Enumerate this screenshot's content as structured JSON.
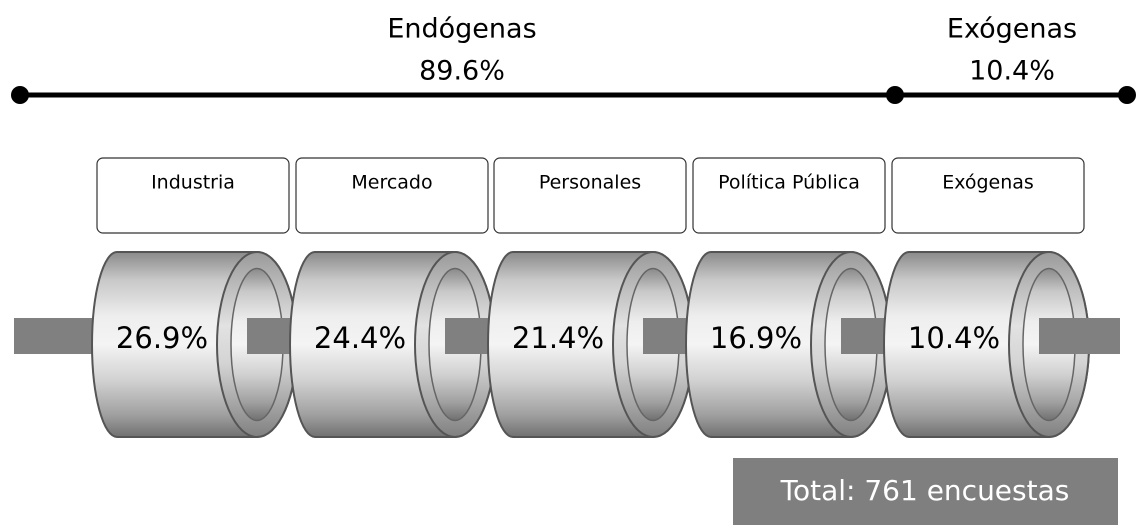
{
  "header": {
    "groups": [
      {
        "label": "Endógenas",
        "value": "89.6%"
      },
      {
        "label": "Exógenas",
        "value": "10.4%"
      }
    ]
  },
  "segments": [
    {
      "label": "Industria",
      "value": "26.9%"
    },
    {
      "label": "Mercado",
      "value": "24.4%"
    },
    {
      "label": "Personales",
      "value": "21.4%"
    },
    {
      "label": "Política Pública",
      "value": "16.9%"
    },
    {
      "label": "Exógenas",
      "value": "10.4%"
    }
  ],
  "footer": {
    "total": "Total: 761 encuestas"
  }
}
